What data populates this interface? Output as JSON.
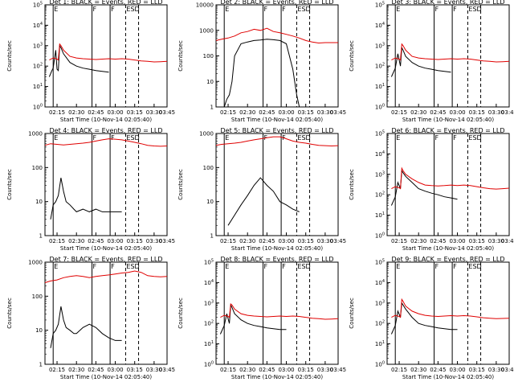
{
  "start_time_label": "Start Time (10-Nov-14 02:05:40)",
  "ylabel": "Counts/sec",
  "xticks": [
    "02:15",
    "02:30",
    "02:45",
    "03:00",
    "03:15",
    "03:30",
    "03:45"
  ],
  "colors": {
    "events": "#000000",
    "lld": "#e00000",
    "axes": "#000000"
  },
  "panel_marks": {
    "left": "E",
    "middle": "F",
    "right": "F",
    "end": "ESD"
  },
  "chart_data": [
    {
      "type": "line",
      "title": "Det 1: BLACK = Events, RED = LLD",
      "ylog": true,
      "ylim": [
        1,
        100000.0
      ],
      "yticks": [
        "10^0",
        "10^1",
        "10^2",
        "10^3",
        "10^4",
        "10^5"
      ],
      "xlim": [
        5.67,
        100
      ],
      "events_break": [
        55,
        75
      ],
      "series": [
        {
          "name": "Events",
          "x": [
            9,
            11,
            12,
            14,
            15,
            16,
            17,
            18,
            20,
            25,
            30,
            35,
            40,
            45,
            50,
            55
          ],
          "y": [
            30,
            60,
            80,
            600,
            70,
            60,
            1000,
            800,
            400,
            150,
            100,
            80,
            70,
            60,
            55,
            50
          ]
        },
        {
          "name": "LLD",
          "x": [
            9,
            12,
            15,
            16,
            17,
            18,
            20,
            25,
            30,
            35,
            40,
            45,
            50,
            55,
            60,
            65,
            70,
            75,
            80,
            85,
            90,
            95,
            100
          ],
          "y": [
            200,
            250,
            220,
            200,
            1200,
            1000,
            600,
            300,
            250,
            230,
            220,
            210,
            220,
            230,
            220,
            230,
            220,
            200,
            180,
            170,
            160,
            165,
            170
          ]
        }
      ]
    },
    {
      "type": "line",
      "title": "Det 2: BLACK = Events, RED = LLD",
      "ylog": true,
      "ylim": [
        1,
        10000.0
      ],
      "yticks": [
        "1",
        "10",
        "100",
        "1000",
        "10000"
      ],
      "xlim": [
        5.67,
        100
      ],
      "events_break": [
        70,
        75
      ],
      "series": [
        {
          "name": "Events",
          "x": [
            10,
            12,
            14,
            16,
            18,
            20,
            25,
            30,
            35,
            40,
            45,
            50,
            55,
            60,
            65,
            68,
            70
          ],
          "y": [
            1,
            1,
            2,
            3,
            10,
            100,
            300,
            350,
            400,
            420,
            450,
            430,
            400,
            300,
            30,
            3,
            1
          ]
        },
        {
          "name": "LLD",
          "x": [
            5.67,
            10,
            15,
            20,
            25,
            30,
            35,
            40,
            45,
            50,
            55,
            60,
            65,
            70,
            75,
            80,
            85,
            90,
            95,
            100
          ],
          "y": [
            400,
            450,
            500,
            600,
            800,
            900,
            1100,
            1000,
            1200,
            900,
            800,
            700,
            600,
            500,
            400,
            350,
            320,
            330,
            330,
            330
          ]
        }
      ]
    },
    {
      "type": "line",
      "title": "Det 3: BLACK = Events, RED = LLD",
      "ylog": true,
      "ylim": [
        1,
        100000.0
      ],
      "yticks": [
        "10^0",
        "10^1",
        "10^2",
        "10^3",
        "10^4",
        "10^5"
      ],
      "xlim": [
        5.67,
        100
      ],
      "events_break": [
        55,
        75
      ],
      "series": [
        {
          "name": "Events",
          "x": [
            9,
            12,
            14,
            16,
            17,
            18,
            20,
            25,
            30,
            35,
            40,
            45,
            50,
            55
          ],
          "y": [
            30,
            80,
            400,
            100,
            800,
            600,
            300,
            150,
            100,
            80,
            70,
            60,
            55,
            50
          ]
        },
        {
          "name": "LLD",
          "x": [
            9,
            12,
            15,
            16,
            17,
            18,
            20,
            25,
            30,
            35,
            40,
            45,
            50,
            55,
            60,
            65,
            70,
            75,
            80,
            85,
            90,
            95,
            100
          ],
          "y": [
            200,
            250,
            220,
            200,
            1200,
            1000,
            600,
            300,
            250,
            230,
            220,
            210,
            220,
            230,
            220,
            230,
            220,
            200,
            180,
            170,
            160,
            165,
            170
          ]
        }
      ]
    },
    {
      "type": "line",
      "title": "Det 4: BLACK = Events, RED = LLD",
      "ylog": true,
      "ylim": [
        1,
        1000
      ],
      "yticks": [
        "1",
        "10",
        "100",
        "1000"
      ],
      "xlim": [
        5.67,
        100
      ],
      "events_break": [
        65,
        75
      ],
      "series": [
        {
          "name": "Events",
          "x": [
            10,
            12,
            14,
            16,
            18,
            20,
            22,
            25,
            28,
            30,
            35,
            40,
            45,
            50,
            55,
            60,
            65
          ],
          "y": [
            3,
            8,
            10,
            15,
            50,
            20,
            10,
            8,
            6,
            5,
            6,
            5,
            6,
            5,
            5,
            5,
            5
          ]
        },
        {
          "name": "LLD",
          "x": [
            5.67,
            10,
            15,
            20,
            25,
            30,
            35,
            40,
            45,
            50,
            55,
            60,
            65,
            70,
            75,
            80,
            85,
            90,
            95,
            100
          ],
          "y": [
            450,
            500,
            480,
            460,
            480,
            500,
            520,
            550,
            600,
            650,
            700,
            680,
            650,
            600,
            550,
            500,
            450,
            430,
            420,
            430
          ]
        }
      ]
    },
    {
      "type": "line",
      "title": "Det 5: BLACK = Events, RED = LLD",
      "ylog": true,
      "ylim": [
        1,
        1000
      ],
      "yticks": [
        "1",
        "10",
        "100",
        "1000"
      ],
      "xlim": [
        5.67,
        100
      ],
      "events_break": [
        70,
        75
      ],
      "series": [
        {
          "name": "Events",
          "x": [
            15,
            20,
            25,
            30,
            35,
            40,
            45,
            50,
            55,
            60,
            65,
            70
          ],
          "y": [
            2,
            4,
            8,
            15,
            30,
            50,
            30,
            20,
            10,
            8,
            6,
            5
          ]
        },
        {
          "name": "LLD",
          "x": [
            5.67,
            10,
            15,
            20,
            25,
            30,
            35,
            40,
            45,
            50,
            55,
            60,
            65,
            70,
            75,
            80,
            85,
            90,
            95,
            100
          ],
          "y": [
            450,
            480,
            500,
            520,
            550,
            600,
            650,
            700,
            750,
            800,
            800,
            700,
            600,
            550,
            520,
            480,
            450,
            440,
            430,
            440
          ]
        }
      ]
    },
    {
      "type": "line",
      "title": "Det 6: BLACK = Events, RED = LLD",
      "ylog": true,
      "ylim": [
        1,
        100000.0
      ],
      "yticks": [
        "10^0",
        "10^1",
        "10^2",
        "10^3",
        "10^4",
        "10^5"
      ],
      "xlim": [
        5.67,
        100
      ],
      "events_break": [
        60,
        75
      ],
      "series": [
        {
          "name": "Events",
          "x": [
            9,
            12,
            14,
            16,
            17,
            18,
            20,
            25,
            30,
            35,
            40,
            45,
            50,
            55,
            60
          ],
          "y": [
            30,
            80,
            400,
            200,
            1500,
            1200,
            800,
            400,
            200,
            150,
            120,
            100,
            80,
            70,
            60
          ]
        },
        {
          "name": "LLD",
          "x": [
            9,
            12,
            15,
            16,
            17,
            18,
            20,
            25,
            30,
            35,
            40,
            45,
            50,
            55,
            60,
            65,
            70,
            75,
            80,
            85,
            90,
            95,
            100
          ],
          "y": [
            200,
            250,
            220,
            200,
            2000,
            1500,
            1000,
            600,
            400,
            300,
            280,
            270,
            280,
            300,
            280,
            300,
            280,
            250,
            220,
            200,
            190,
            200,
            210
          ]
        }
      ]
    },
    {
      "type": "line",
      "title": "Det 7: BLACK = Events, RED = LLD",
      "ylog": true,
      "ylim": [
        1,
        1000
      ],
      "yticks": [
        "1",
        "10",
        "100",
        "1000"
      ],
      "xlim": [
        5.67,
        100
      ],
      "events_break": [
        65,
        75
      ],
      "series": [
        {
          "name": "Events",
          "x": [
            10,
            12,
            14,
            16,
            18,
            20,
            22,
            25,
            28,
            30,
            35,
            40,
            45,
            50,
            55,
            60,
            65
          ],
          "y": [
            3,
            8,
            10,
            15,
            50,
            20,
            12,
            10,
            8,
            8,
            12,
            15,
            12,
            8,
            6,
            5,
            5
          ]
        },
        {
          "name": "LLD",
          "x": [
            5.67,
            10,
            15,
            20,
            25,
            30,
            35,
            40,
            45,
            50,
            55,
            60,
            65,
            70,
            75,
            80,
            85,
            90,
            95,
            100
          ],
          "y": [
            250,
            280,
            300,
            350,
            380,
            400,
            380,
            350,
            380,
            400,
            420,
            450,
            480,
            500,
            550,
            500,
            400,
            380,
            370,
            380
          ]
        }
      ]
    },
    {
      "type": "line",
      "title": "Det 8: BLACK = Events, RED = LLD",
      "ylog": true,
      "ylim": [
        1,
        100000.0
      ],
      "yticks": [
        "10^0",
        "10^1",
        "10^2",
        "10^3",
        "10^4",
        "10^5"
      ],
      "xlim": [
        5.67,
        100
      ],
      "events_break": [
        60,
        75
      ],
      "series": [
        {
          "name": "Events",
          "x": [
            9,
            12,
            14,
            16,
            17,
            18,
            20,
            25,
            30,
            35,
            40,
            45,
            50,
            55,
            60
          ],
          "y": [
            30,
            80,
            300,
            100,
            800,
            600,
            300,
            150,
            100,
            80,
            70,
            60,
            55,
            50,
            50
          ]
        },
        {
          "name": "LLD",
          "x": [
            9,
            12,
            15,
            16,
            17,
            18,
            20,
            25,
            30,
            35,
            40,
            45,
            50,
            55,
            60,
            65,
            70,
            75,
            80,
            85,
            90,
            95,
            100
          ],
          "y": [
            200,
            250,
            220,
            200,
            900,
            800,
            500,
            300,
            250,
            230,
            220,
            210,
            220,
            230,
            220,
            230,
            220,
            200,
            180,
            170,
            160,
            165,
            170
          ]
        }
      ]
    },
    {
      "type": "line",
      "title": "Det 9: BLACK = Events, RED = LLD",
      "ylog": true,
      "ylim": [
        1,
        100000.0
      ],
      "yticks": [
        "10^0",
        "10^1",
        "10^2",
        "10^3",
        "10^4",
        "10^5"
      ],
      "xlim": [
        5.67,
        100
      ],
      "events_break": [
        60,
        75
      ],
      "series": [
        {
          "name": "Events",
          "x": [
            9,
            12,
            14,
            16,
            17,
            18,
            20,
            25,
            30,
            35,
            40,
            45,
            50,
            55,
            60
          ],
          "y": [
            30,
            80,
            400,
            200,
            1000,
            800,
            500,
            200,
            100,
            80,
            70,
            60,
            55,
            50,
            50
          ]
        },
        {
          "name": "LLD",
          "x": [
            9,
            12,
            15,
            16,
            17,
            18,
            20,
            25,
            30,
            35,
            40,
            45,
            50,
            55,
            60,
            65,
            70,
            75,
            80,
            85,
            90,
            95,
            100
          ],
          "y": [
            200,
            250,
            220,
            200,
            1500,
            1200,
            700,
            400,
            300,
            250,
            230,
            220,
            230,
            240,
            230,
            240,
            230,
            210,
            190,
            180,
            170,
            175,
            180
          ]
        }
      ]
    }
  ]
}
